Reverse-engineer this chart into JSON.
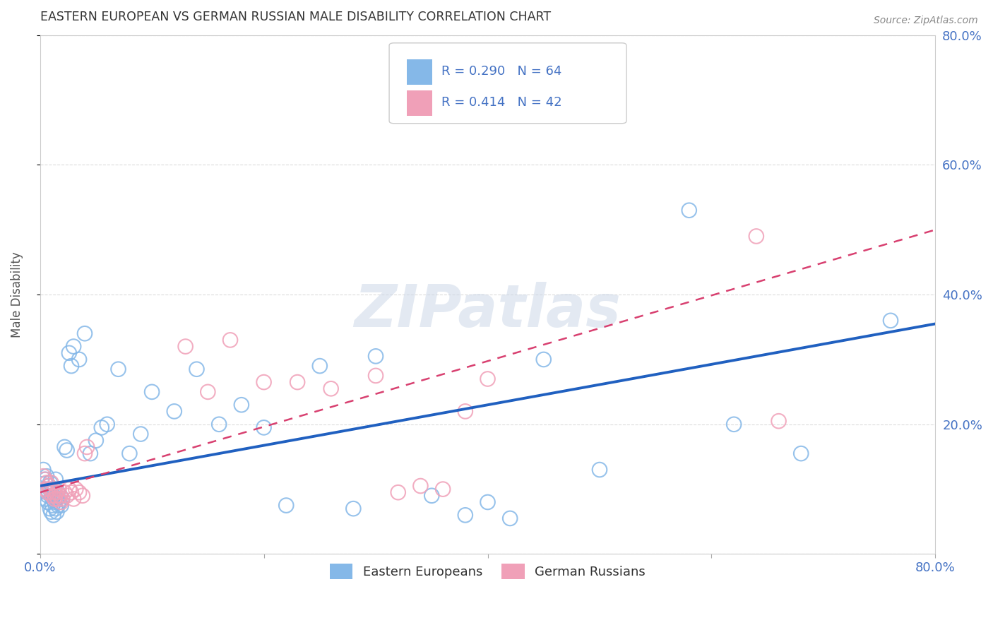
{
  "title": "EASTERN EUROPEAN VS GERMAN RUSSIAN MALE DISABILITY CORRELATION CHART",
  "source": "Source: ZipAtlas.com",
  "ylabel": "Male Disability",
  "xlim": [
    0.0,
    0.8
  ],
  "ylim": [
    0.0,
    0.8
  ],
  "background_color": "#ffffff",
  "grid_color": "#cccccc",
  "blue_color": "#85b8e8",
  "pink_color": "#f0a0b8",
  "blue_line_color": "#2060c0",
  "pink_line_color": "#d84070",
  "title_color": "#333333",
  "axis_tick_color": "#4472c4",
  "legend_R_color": "#4472c4",
  "R1": 0.29,
  "N1": 64,
  "R2": 0.414,
  "N2": 42,
  "label1": "Eastern Europeans",
  "label2": "German Russians",
  "eastern_europeans_x": [
    0.003,
    0.004,
    0.005,
    0.005,
    0.006,
    0.006,
    0.007,
    0.007,
    0.008,
    0.008,
    0.009,
    0.009,
    0.01,
    0.01,
    0.011,
    0.011,
    0.012,
    0.012,
    0.013,
    0.013,
    0.014,
    0.014,
    0.015,
    0.015,
    0.016,
    0.016,
    0.017,
    0.018,
    0.019,
    0.02,
    0.022,
    0.024,
    0.026,
    0.028,
    0.03,
    0.035,
    0.04,
    0.045,
    0.05,
    0.055,
    0.06,
    0.07,
    0.08,
    0.09,
    0.1,
    0.12,
    0.14,
    0.16,
    0.18,
    0.2,
    0.22,
    0.25,
    0.28,
    0.3,
    0.35,
    0.38,
    0.42,
    0.45,
    0.4,
    0.5,
    0.58,
    0.62,
    0.68,
    0.76
  ],
  "eastern_europeans_y": [
    0.13,
    0.1,
    0.115,
    0.085,
    0.095,
    0.12,
    0.09,
    0.08,
    0.105,
    0.095,
    0.11,
    0.07,
    0.095,
    0.065,
    0.085,
    0.075,
    0.09,
    0.06,
    0.1,
    0.08,
    0.115,
    0.07,
    0.085,
    0.065,
    0.075,
    0.095,
    0.08,
    0.09,
    0.075,
    0.085,
    0.165,
    0.16,
    0.31,
    0.29,
    0.32,
    0.3,
    0.34,
    0.155,
    0.175,
    0.195,
    0.2,
    0.285,
    0.155,
    0.185,
    0.25,
    0.22,
    0.285,
    0.2,
    0.23,
    0.195,
    0.075,
    0.29,
    0.07,
    0.305,
    0.09,
    0.06,
    0.055,
    0.3,
    0.08,
    0.13,
    0.53,
    0.2,
    0.155,
    0.36
  ],
  "german_russians_x": [
    0.003,
    0.004,
    0.005,
    0.006,
    0.007,
    0.008,
    0.009,
    0.01,
    0.011,
    0.012,
    0.013,
    0.014,
    0.015,
    0.016,
    0.017,
    0.018,
    0.019,
    0.02,
    0.022,
    0.024,
    0.026,
    0.028,
    0.03,
    0.032,
    0.035,
    0.038,
    0.04,
    0.042,
    0.13,
    0.15,
    0.17,
    0.2,
    0.23,
    0.26,
    0.3,
    0.32,
    0.34,
    0.36,
    0.38,
    0.4,
    0.64,
    0.66
  ],
  "german_russians_y": [
    0.12,
    0.115,
    0.1,
    0.11,
    0.095,
    0.105,
    0.1,
    0.11,
    0.09,
    0.095,
    0.085,
    0.09,
    0.095,
    0.085,
    0.1,
    0.09,
    0.08,
    0.085,
    0.095,
    0.09,
    0.1,
    0.095,
    0.085,
    0.1,
    0.095,
    0.09,
    0.155,
    0.165,
    0.32,
    0.25,
    0.33,
    0.265,
    0.265,
    0.255,
    0.275,
    0.095,
    0.105,
    0.1,
    0.22,
    0.27,
    0.49,
    0.205
  ],
  "blue_line_x0": 0.0,
  "blue_line_y0": 0.105,
  "blue_line_x1": 0.8,
  "blue_line_y1": 0.355,
  "pink_line_x0": 0.0,
  "pink_line_y0": 0.095,
  "pink_line_x1": 0.8,
  "pink_line_y1": 0.5
}
